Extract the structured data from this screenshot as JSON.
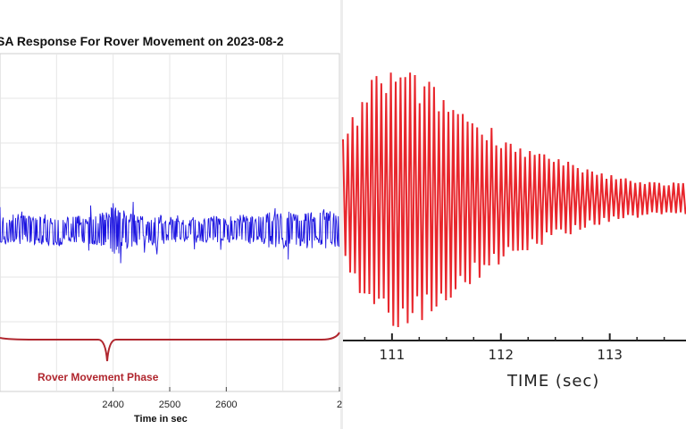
{
  "chart_data": [
    {
      "type": "line",
      "title": "SA Response For Rover Movement on 2023-08-2",
      "xlabel": "Time in sec",
      "ylabel": "",
      "xlim": [
        2200,
        2800
      ],
      "xticks": [
        "2400",
        "2500",
        "2600",
        "2"
      ],
      "grid": true,
      "annotation": "Rover Movement Phase",
      "series": [
        {
          "color": "#1a12e0",
          "x": [
            2200,
            2225,
            2250,
            2275,
            2300,
            2325,
            2350,
            2375,
            2400,
            2425,
            2450,
            2475,
            2500,
            2525,
            2550,
            2575,
            2600,
            2625,
            2650,
            2675,
            2700
          ],
          "envelope": [
            0.55,
            0.6,
            0.52,
            0.58,
            0.62,
            0.55,
            0.5,
            0.65,
            1.0,
            0.72,
            0.55,
            0.6,
            0.48,
            0.45,
            0.5,
            0.52,
            0.45,
            0.58,
            0.5,
            0.65,
            0.7
          ]
        }
      ]
    },
    {
      "type": "line",
      "title": "",
      "xlabel": "TIME (sec)",
      "ylabel": "",
      "xlim": [
        110.55,
        113.7
      ],
      "xticks": [
        "111",
        "112",
        "113"
      ],
      "grid": false,
      "series": [
        {
          "color": "#e8262c",
          "x": [
            110.55,
            110.8,
            111.0,
            111.2,
            111.4,
            111.6,
            111.8,
            112.0,
            112.2,
            112.4,
            112.6,
            112.8,
            113.0,
            113.2,
            113.4,
            113.6,
            113.7
          ],
          "envelope": [
            0.45,
            0.92,
            1.0,
            0.95,
            0.85,
            0.72,
            0.6,
            0.5,
            0.4,
            0.34,
            0.28,
            0.22,
            0.18,
            0.15,
            0.13,
            0.12,
            0.12
          ]
        }
      ]
    }
  ]
}
